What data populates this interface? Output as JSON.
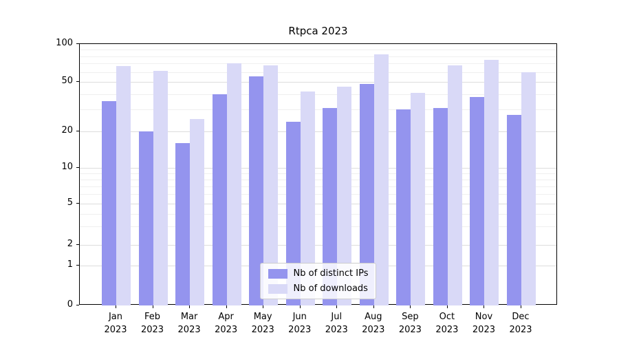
{
  "chart_data": {
    "type": "bar",
    "title": "Rtpca 2023",
    "categories": [
      "Jan",
      "Feb",
      "Mar",
      "Apr",
      "May",
      "Jun",
      "Jul",
      "Aug",
      "Sep",
      "Oct",
      "Nov",
      "Dec"
    ],
    "year": "2023",
    "series": [
      {
        "name": "Nb of distinct IPs",
        "color": "#9494ee",
        "values": [
          35,
          20,
          16,
          40,
          55,
          24,
          31,
          48,
          30,
          31,
          38,
          27
        ]
      },
      {
        "name": "Nb of downloads",
        "color": "#d9d9f7",
        "values": [
          67,
          61,
          25,
          70,
          68,
          42,
          46,
          83,
          41,
          68,
          75,
          60
        ]
      }
    ],
    "yscale": "symlog",
    "ylim": [
      0,
      100
    ],
    "yticks": [
      0,
      1,
      2,
      5,
      10,
      20,
      50,
      100
    ],
    "grid": true,
    "legend_position": "lower center"
  }
}
